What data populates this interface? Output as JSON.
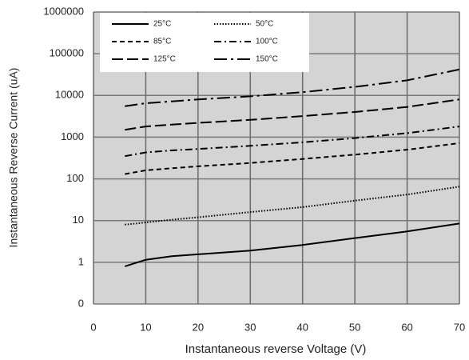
{
  "chart_data": {
    "type": "line",
    "xlabel": "Instantaneous reverse Voltage (V)",
    "ylabel": "Instantaneous Reverse Current (uA)",
    "x": [
      6,
      10,
      15,
      20,
      30,
      40,
      50,
      60,
      70
    ],
    "series": [
      {
        "name": "25°C",
        "color": "#000000",
        "dash": "solid",
        "values": [
          0.8,
          1.15,
          1.4,
          1.55,
          1.9,
          2.6,
          3.8,
          5.5,
          8.5
        ]
      },
      {
        "name": "50°C",
        "color": "#000000",
        "dash": "dotted",
        "values": [
          8,
          9,
          10.5,
          12,
          16,
          21,
          30,
          42,
          65
        ]
      },
      {
        "name": "85°C",
        "color": "#000000",
        "dash": "dashed",
        "values": [
          130,
          160,
          180,
          200,
          240,
          300,
          380,
          500,
          720
        ]
      },
      {
        "name": "100°C",
        "color": "#000000",
        "dash": "dashdot",
        "values": [
          350,
          430,
          480,
          520,
          620,
          750,
          950,
          1250,
          1800
        ]
      },
      {
        "name": "125°C",
        "color": "#000000",
        "dash": "longdash",
        "values": [
          1500,
          1800,
          2000,
          2200,
          2600,
          3200,
          4000,
          5300,
          8000
        ]
      },
      {
        "name": "150°C",
        "color": "#000000",
        "dash": "longdashdot",
        "values": [
          5500,
          6500,
          7200,
          8000,
          9500,
          12000,
          16000,
          23000,
          42000
        ]
      }
    ],
    "xlim": [
      0,
      70
    ],
    "xticks": [
      0,
      10,
      20,
      30,
      40,
      50,
      60,
      70
    ],
    "ylim": [
      0.1,
      1000000
    ],
    "yticks": [
      {
        "value": 0.1,
        "label": "0"
      },
      1,
      10,
      100,
      1000,
      10000,
      100000,
      1000000
    ],
    "ylog": true,
    "grid": true,
    "legend": "upper left"
  }
}
